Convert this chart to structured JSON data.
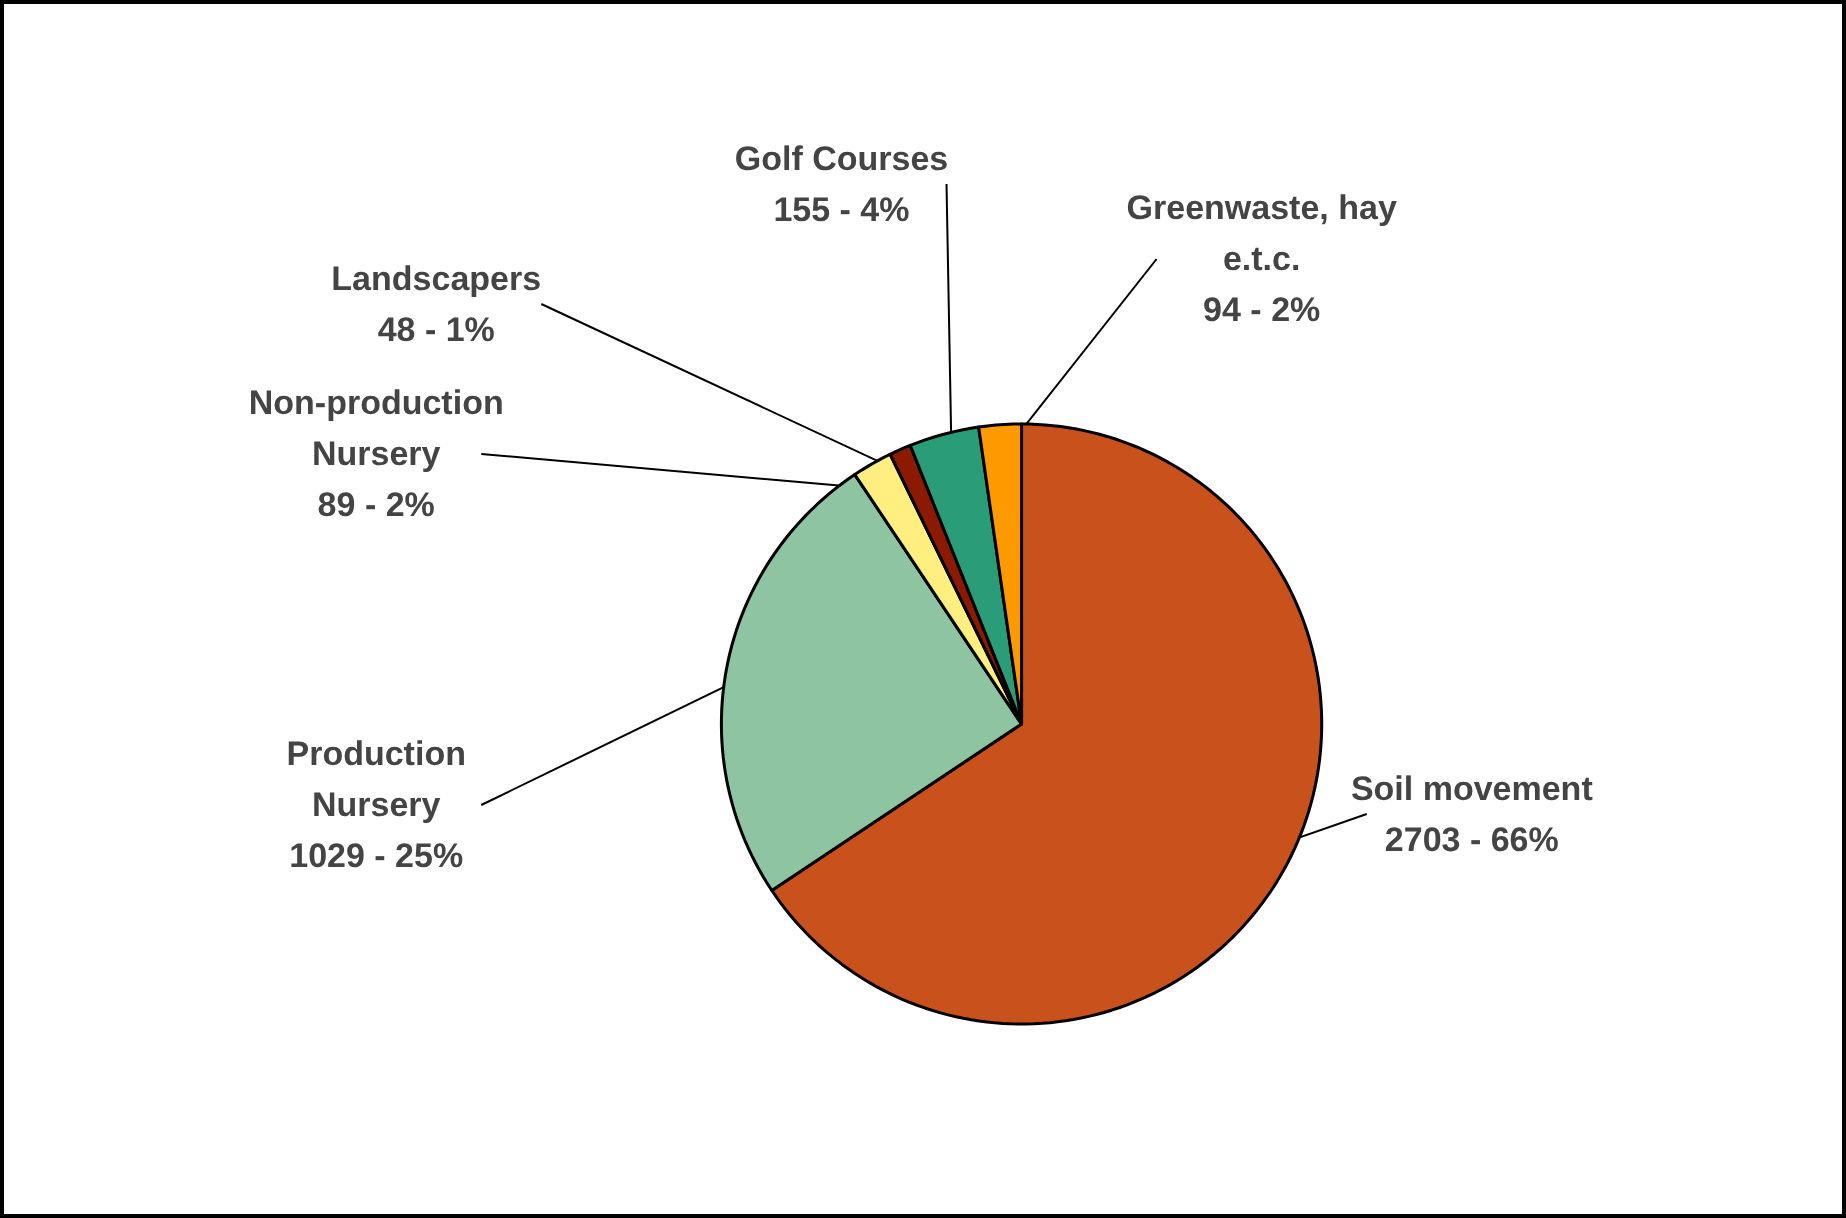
{
  "chart_data": {
    "type": "pie",
    "categories": [
      "Soil movement",
      "Production Nursery",
      "Non-production Nursery",
      "Landscapers",
      "Golf Courses",
      "Greenwaste, hay e.t.c."
    ],
    "values": [
      2703,
      1029,
      89,
      48,
      155,
      94
    ],
    "value_labels": [
      "2703 - 66%",
      "1029 - 25%",
      "89 - 2%",
      "48 - 1%",
      "155 - 4%",
      "94 - 2%"
    ],
    "colors": [
      "#c9521c",
      "#8fc4a3",
      "#ffee80",
      "#8b1a00",
      "#2a9d78",
      "#ff9900"
    ]
  }
}
